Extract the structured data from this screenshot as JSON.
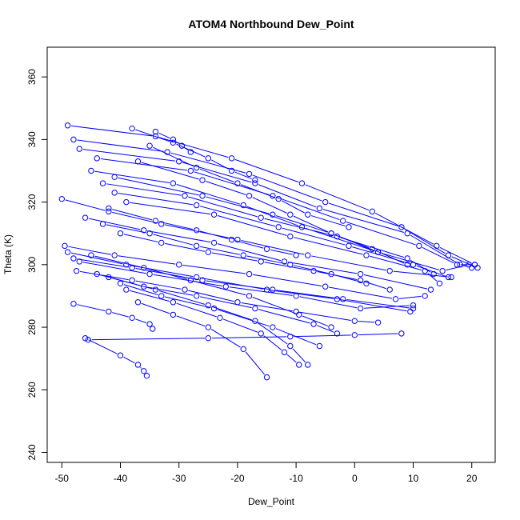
{
  "chart_data": {
    "type": "line",
    "title": "ATOM4 Northbound Dew_Point",
    "xlabel": "Dew_Point",
    "ylabel": "Theta (K)",
    "xlim": [
      -52.5,
      24
    ],
    "ylim": [
      236.8,
      369.5
    ],
    "xticks": [
      -50,
      -40,
      -30,
      -20,
      -10,
      0,
      10,
      20
    ],
    "yticks": [
      240,
      260,
      280,
      300,
      320,
      340,
      360
    ],
    "grid": false,
    "marker": "open-circle",
    "line_color": "#0000ff",
    "series": [
      {
        "x": [
          -49,
          -34,
          -21,
          -9,
          3,
          14,
          20.5
        ],
        "y": [
          344.5,
          341,
          334,
          326,
          317,
          306,
          300
        ]
      },
      {
        "x": [
          -48,
          -32,
          -18,
          -5,
          8,
          16,
          21
        ],
        "y": [
          340,
          336,
          329,
          320,
          312,
          303,
          299
        ]
      },
      {
        "x": [
          -47,
          -30,
          -17,
          -6,
          9,
          18,
          20
        ],
        "y": [
          337,
          333,
          326,
          318,
          310,
          300,
          299
        ]
      },
      {
        "x": [
          -44,
          -28,
          -14,
          -2,
          11,
          17.5,
          20.5
        ],
        "y": [
          334,
          330,
          322,
          314,
          306,
          300,
          300
        ]
      },
      {
        "x": [
          -45,
          -31,
          -19,
          -9,
          4,
          15,
          19.5
        ],
        "y": [
          330,
          326,
          319,
          312,
          304,
          298,
          300
        ]
      },
      {
        "x": [
          -43,
          -29,
          -16,
          -3,
          9,
          13.5
        ],
        "y": [
          326,
          322,
          315,
          309,
          302,
          297
        ]
      },
      {
        "x": [
          -41,
          -27,
          -13,
          -1,
          10,
          16
        ],
        "y": [
          323,
          319,
          312,
          306,
          300,
          296
        ]
      },
      {
        "x": [
          -39,
          -24,
          -11,
          2,
          12,
          14.5
        ],
        "y": [
          320,
          316,
          309,
          303,
          298,
          294
        ]
      },
      {
        "x": [
          -50,
          -42,
          -33,
          -20,
          -8,
          6,
          16.5
        ],
        "y": [
          321,
          317,
          313,
          308,
          303,
          298,
          296
        ]
      },
      {
        "x": [
          -46,
          -36,
          -24,
          -12,
          1,
          13
        ],
        "y": [
          315,
          311,
          307,
          301,
          297,
          292
        ]
      },
      {
        "x": [
          -49.5,
          -41,
          -30,
          -18,
          -5,
          7,
          12
        ],
        "y": [
          306,
          303,
          300,
          297,
          293,
          289,
          290
        ]
      },
      {
        "x": [
          -48,
          -38,
          -26,
          -14,
          -2,
          10
        ],
        "y": [
          302,
          299,
          295,
          292,
          289,
          286
        ]
      },
      {
        "x": [
          -49,
          -39,
          -27,
          -15,
          -3,
          9.5
        ],
        "y": [
          304,
          300,
          296,
          292,
          289,
          285
        ]
      },
      {
        "x": [
          -47,
          -35,
          -22,
          -10,
          1,
          10
        ],
        "y": [
          301,
          297,
          293,
          290,
          286,
          287
        ]
      },
      {
        "x": [
          -47.5,
          -38,
          -29,
          -20,
          -10,
          0,
          4
        ],
        "y": [
          298,
          295,
          292,
          288,
          285,
          282,
          281.5
        ]
      },
      {
        "x": [
          -44,
          -36,
          -27,
          -17,
          -7,
          -3
        ],
        "y": [
          297,
          293,
          290,
          286,
          281,
          278
        ]
      },
      {
        "x": [
          -45,
          -36,
          -28,
          -18,
          -9.5,
          -4
        ],
        "y": [
          303,
          299,
          295,
          290,
          284,
          280
        ]
      },
      {
        "x": [
          -40,
          -33,
          -24,
          -14,
          -6
        ],
        "y": [
          294,
          290,
          286,
          280,
          274
        ]
      },
      {
        "x": [
          -42,
          -34,
          -25,
          -17,
          -11,
          -8
        ],
        "y": [
          296,
          292,
          287,
          282,
          274,
          268
        ]
      },
      {
        "x": [
          -39,
          -31,
          -23,
          -16,
          -12,
          -9.5
        ],
        "y": [
          292,
          288,
          283,
          278,
          272,
          268
        ]
      },
      {
        "x": [
          -37,
          -31,
          -25,
          -19,
          -15
        ],
        "y": [
          288,
          284,
          280,
          273,
          264
        ]
      },
      {
        "x": [
          -48,
          -42,
          -38,
          -35,
          -34.5
        ],
        "y": [
          287.5,
          285,
          283,
          281,
          279.5
        ]
      },
      {
        "x": [
          -46,
          -40,
          -37,
          -36,
          -35.5
        ],
        "y": [
          276.5,
          271,
          268,
          266,
          264.5
        ]
      },
      {
        "x": [
          -45.5,
          -25,
          -11,
          0,
          8
        ],
        "y": [
          276,
          276.5,
          277,
          277.5,
          278
        ]
      },
      {
        "x": [
          -41,
          -26,
          -14,
          -4,
          3,
          9
        ],
        "y": [
          328,
          322,
          316,
          310,
          305,
          300
        ]
      },
      {
        "x": [
          -37,
          -26,
          -18,
          -11,
          -4,
          4
        ],
        "y": [
          333,
          327,
          322,
          316,
          310,
          304
        ]
      },
      {
        "x": [
          -35,
          -27,
          -20,
          -13,
          -8,
          -1
        ],
        "y": [
          338,
          331,
          326,
          321,
          316,
          312
        ]
      },
      {
        "x": [
          -38,
          -31,
          -25,
          -21,
          -17
        ],
        "y": [
          343.5,
          339,
          334,
          330,
          327
        ]
      },
      {
        "x": [
          -34,
          -31,
          -29.5,
          -28
        ],
        "y": [
          342.5,
          340,
          338,
          336
        ]
      },
      {
        "x": [
          -42,
          -34,
          -27,
          -21,
          -15,
          -10
        ],
        "y": [
          318,
          314,
          311,
          308,
          305,
          303
        ]
      },
      {
        "x": [
          -40,
          -33,
          -25,
          -16,
          -7,
          1,
          6
        ],
        "y": [
          310,
          307,
          304,
          301,
          298,
          295,
          292
        ]
      },
      {
        "x": [
          -43,
          -35,
          -27,
          -19,
          -11,
          -4,
          2
        ],
        "y": [
          313,
          310,
          306,
          303,
          300,
          297,
          294
        ]
      }
    ]
  }
}
